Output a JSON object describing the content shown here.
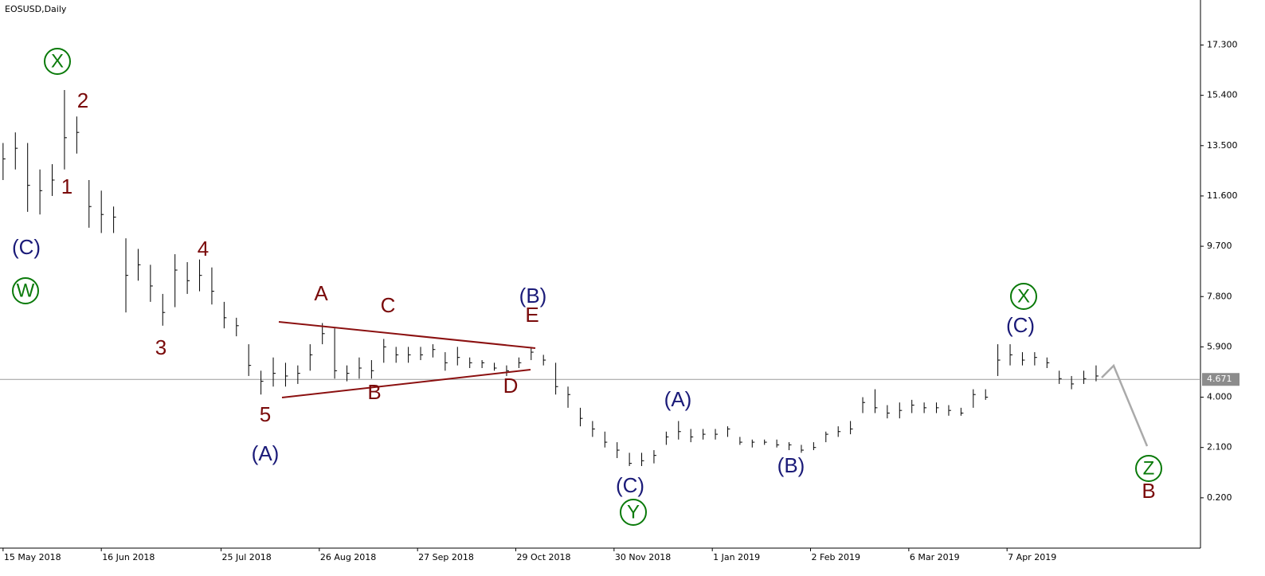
{
  "chart_data": {
    "type": "ohlc",
    "title": "EOSUSD,Daily",
    "color": "#000000",
    "x": [
      "2018-05-15",
      "2018-05-19",
      "2018-05-23",
      "2018-05-27",
      "2018-05-31",
      "2018-06-04",
      "2018-06-08",
      "2018-06-12",
      "2018-06-16",
      "2018-06-20",
      "2018-06-24",
      "2018-06-28",
      "2018-07-02",
      "2018-07-06",
      "2018-07-10",
      "2018-07-14",
      "2018-07-18",
      "2018-07-22",
      "2018-07-26",
      "2018-07-30",
      "2018-08-03",
      "2018-08-07",
      "2018-08-11",
      "2018-08-15",
      "2018-08-19",
      "2018-08-23",
      "2018-08-27",
      "2018-08-31",
      "2018-09-04",
      "2018-09-08",
      "2018-09-12",
      "2018-09-16",
      "2018-09-20",
      "2018-09-24",
      "2018-09-28",
      "2018-10-02",
      "2018-10-06",
      "2018-10-10",
      "2018-10-14",
      "2018-10-18",
      "2018-10-22",
      "2018-10-26",
      "2018-10-30",
      "2018-11-03",
      "2018-11-07",
      "2018-11-11",
      "2018-11-15",
      "2018-11-19",
      "2018-11-23",
      "2018-11-27",
      "2018-12-01",
      "2018-12-05",
      "2018-12-09",
      "2018-12-13",
      "2018-12-17",
      "2018-12-21",
      "2018-12-25",
      "2018-12-29",
      "2019-01-02",
      "2019-01-06",
      "2019-01-10",
      "2019-01-14",
      "2019-01-18",
      "2019-01-22",
      "2019-01-26",
      "2019-01-30",
      "2019-02-03",
      "2019-02-07",
      "2019-02-11",
      "2019-02-15",
      "2019-02-19",
      "2019-02-23",
      "2019-02-27",
      "2019-03-03",
      "2019-03-07",
      "2019-03-11",
      "2019-03-15",
      "2019-03-19",
      "2019-03-23",
      "2019-03-27",
      "2019-03-31",
      "2019-04-04",
      "2019-04-08",
      "2019-04-12",
      "2019-04-16",
      "2019-04-20",
      "2019-04-24",
      "2019-04-28",
      "2019-05-02",
      "2019-05-06"
    ],
    "high": [
      13.6,
      14.0,
      13.6,
      12.6,
      12.8,
      15.6,
      14.6,
      12.2,
      11.8,
      11.2,
      10.0,
      9.6,
      9.0,
      7.9,
      9.4,
      9.1,
      9.2,
      8.9,
      7.6,
      7.0,
      6.0,
      5.0,
      5.5,
      5.3,
      5.2,
      6.0,
      6.8,
      6.6,
      5.2,
      5.5,
      5.4,
      6.2,
      5.9,
      5.9,
      5.9,
      6.0,
      5.7,
      5.9,
      5.5,
      5.4,
      5.3,
      5.2,
      5.5,
      5.9,
      5.6,
      5.3,
      4.4,
      3.6,
      3.1,
      2.7,
      2.3,
      1.9,
      1.9,
      2.0,
      2.7,
      3.1,
      2.8,
      2.8,
      2.8,
      2.9,
      2.5,
      2.4,
      2.4,
      2.4,
      2.3,
      2.2,
      2.3,
      2.7,
      2.9,
      3.1,
      4.0,
      4.3,
      3.7,
      3.8,
      3.9,
      3.8,
      3.8,
      3.7,
      3.6,
      4.3,
      4.3,
      6.0,
      6.0,
      5.7,
      5.7,
      5.5,
      5.0,
      4.8,
      5.0,
      5.2
    ],
    "low": [
      12.2,
      12.6,
      11.0,
      10.9,
      11.6,
      12.6,
      13.2,
      10.4,
      10.2,
      10.2,
      7.2,
      8.4,
      7.6,
      6.7,
      7.4,
      7.9,
      8.0,
      7.5,
      6.6,
      6.3,
      4.8,
      4.1,
      4.4,
      4.4,
      4.5,
      5.0,
      6.0,
      4.7,
      4.6,
      4.7,
      4.7,
      5.3,
      5.3,
      5.3,
      5.4,
      5.5,
      5.0,
      5.2,
      5.1,
      5.1,
      5.0,
      4.8,
      5.1,
      5.4,
      5.2,
      4.1,
      3.6,
      2.9,
      2.5,
      2.1,
      1.7,
      1.4,
      1.4,
      1.5,
      2.2,
      2.4,
      2.3,
      2.4,
      2.4,
      2.5,
      2.2,
      2.1,
      2.2,
      2.1,
      2.0,
      1.9,
      2.0,
      2.3,
      2.5,
      2.6,
      3.4,
      3.4,
      3.2,
      3.2,
      3.4,
      3.4,
      3.4,
      3.3,
      3.3,
      3.6,
      3.9,
      4.8,
      5.2,
      5.2,
      5.2,
      5.1,
      4.5,
      4.3,
      4.5,
      4.6
    ],
    "close": [
      13.0,
      13.4,
      12.0,
      11.8,
      12.2,
      13.8,
      14.0,
      11.2,
      10.9,
      10.8,
      8.6,
      9.0,
      8.2,
      7.2,
      8.8,
      8.4,
      8.6,
      8.0,
      7.0,
      6.7,
      5.2,
      4.6,
      4.9,
      4.8,
      4.9,
      5.6,
      6.4,
      5.0,
      4.9,
      5.1,
      5.0,
      5.9,
      5.6,
      5.6,
      5.6,
      5.8,
      5.3,
      5.5,
      5.3,
      5.3,
      5.1,
      5.0,
      5.3,
      5.7,
      5.4,
      4.4,
      4.1,
      3.2,
      2.8,
      2.3,
      2.0,
      1.5,
      1.6,
      1.8,
      2.5,
      2.7,
      2.5,
      2.6,
      2.6,
      2.8,
      2.3,
      2.3,
      2.3,
      2.2,
      2.2,
      2.0,
      2.1,
      2.6,
      2.7,
      2.8,
      3.8,
      3.6,
      3.4,
      3.5,
      3.7,
      3.6,
      3.6,
      3.5,
      3.4,
      4.1,
      4.0,
      5.4,
      5.6,
      5.4,
      5.5,
      5.3,
      4.7,
      4.5,
      4.7,
      4.8
    ],
    "current_price": 4.671,
    "ylim": [
      -1.7,
      19.0
    ],
    "yticks": [
      {
        "value": 0.2,
        "label": "0.200"
      },
      {
        "value": 2.1,
        "label": "2.100"
      },
      {
        "value": 4.0,
        "label": "4.000"
      },
      {
        "value": 5.9,
        "label": "5.900"
      },
      {
        "value": 7.8,
        "label": "7.800"
      },
      {
        "value": 9.7,
        "label": "9.700"
      },
      {
        "value": 11.6,
        "label": "11.600"
      },
      {
        "value": 13.5,
        "label": "13.500"
      },
      {
        "value": 15.4,
        "label": "15.400"
      },
      {
        "value": 17.3,
        "label": "17.300"
      }
    ],
    "xlim": [
      "2018-05-14",
      "2019-06-09"
    ],
    "xticks": [
      {
        "value": "2018-05-15",
        "label": "15 May 2018"
      },
      {
        "value": "2018-06-16",
        "label": "16 Jun 2018"
      },
      {
        "value": "2018-07-25",
        "label": "25 Jul 2018"
      },
      {
        "value": "2018-08-26",
        "label": "26 Aug 2018"
      },
      {
        "value": "2018-09-27",
        "label": "27 Sep 2018"
      },
      {
        "value": "2018-10-29",
        "label": "29 Oct 2018"
      },
      {
        "value": "2018-11-30",
        "label": "30 Nov 2018"
      },
      {
        "value": "2019-01-01",
        "label": "1 Jan 2019"
      },
      {
        "value": "2019-02-02",
        "label": "2 Feb 2019"
      },
      {
        "value": "2019-03-06",
        "label": "6 Mar 2019"
      },
      {
        "value": "2019-04-07",
        "label": "7 Apr 2019"
      }
    ],
    "annotations": [
      {
        "text": "X",
        "color": "#0a7a0a",
        "circled": true
      },
      {
        "text": "W",
        "color": "#0a7a0a",
        "circled": true
      },
      {
        "text": "X",
        "color": "#0a7a0a",
        "circled": true
      },
      {
        "text": "Y",
        "color": "#0a7a0a",
        "circled": true
      },
      {
        "text": "Z",
        "color": "#0a7a0a",
        "circled": true
      },
      {
        "text": "2",
        "color": "#7a0a0a",
        "circled": false
      },
      {
        "text": "1",
        "color": "#7a0a0a",
        "circled": false
      },
      {
        "text": "4",
        "color": "#7a0a0a",
        "circled": false
      },
      {
        "text": "3",
        "color": "#7a0a0a",
        "circled": false
      },
      {
        "text": "5",
        "color": "#7a0a0a",
        "circled": false
      },
      {
        "text": "A",
        "color": "#7a0a0a",
        "circled": false
      },
      {
        "text": "C",
        "color": "#7a0a0a",
        "circled": false
      },
      {
        "text": "B",
        "color": "#7a0a0a",
        "circled": false
      },
      {
        "text": "D",
        "color": "#7a0a0a",
        "circled": false
      },
      {
        "text": "E",
        "color": "#7a0a0a",
        "circled": false
      },
      {
        "text": "B",
        "color": "#7a0a0a",
        "circled": false
      },
      {
        "text": "(C)",
        "color": "#1a1a78",
        "circled": false
      },
      {
        "text": "(A)",
        "color": "#1a1a78",
        "circled": false
      },
      {
        "text": "(B)",
        "color": "#1a1a78",
        "circled": false
      },
      {
        "text": "(A)",
        "color": "#1a1a78",
        "circled": false
      },
      {
        "text": "(C)",
        "color": "#1a1a78",
        "circled": false
      },
      {
        "text": "(B)",
        "color": "#1a1a78",
        "circled": false
      },
      {
        "text": "(C)",
        "color": "#1a1a78",
        "circled": false
      }
    ]
  }
}
